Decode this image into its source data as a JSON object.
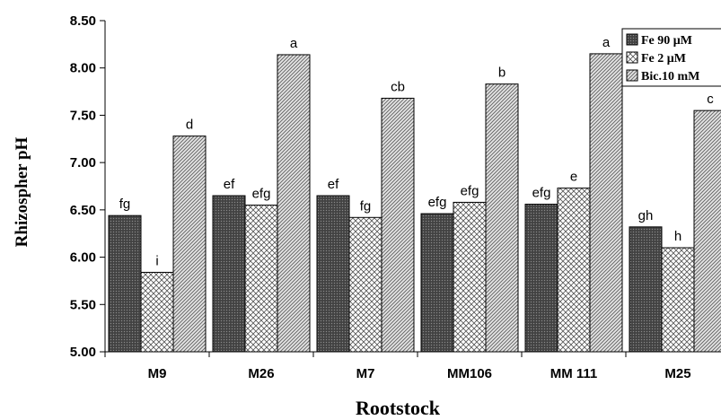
{
  "chart_data": {
    "type": "bar",
    "xlabel": "Rootstock",
    "ylabel": "Rhizospher pH",
    "ylim": [
      5.0,
      8.5
    ],
    "yticks": [
      "5.00",
      "5.50",
      "6.00",
      "6.50",
      "7.00",
      "7.50",
      "8.00",
      "8.50"
    ],
    "categories": [
      "M9",
      "M26",
      "M7",
      "MM106",
      "MM 111",
      "M25"
    ],
    "legend_position": "top-right",
    "series": [
      {
        "name": "Fe 90 μM",
        "pattern": "dark-dotted",
        "values": [
          6.44,
          6.65,
          6.65,
          6.46,
          6.56,
          6.32
        ],
        "labels": [
          "fg",
          "ef",
          "ef",
          "efg",
          "efg",
          "gh"
        ]
      },
      {
        "name": "Fe 2 μM",
        "pattern": "white-checkered",
        "values": [
          5.84,
          6.55,
          6.42,
          6.58,
          6.73,
          6.1
        ],
        "labels": [
          "i",
          "efg",
          "fg",
          "efg",
          "e",
          "h"
        ]
      },
      {
        "name": "Bic.10 mM",
        "pattern": "diagonal-hatch",
        "values": [
          7.28,
          8.14,
          7.68,
          7.83,
          8.15,
          7.55
        ],
        "labels": [
          "d",
          "a",
          "cb",
          "b",
          "a",
          "c"
        ]
      }
    ]
  }
}
